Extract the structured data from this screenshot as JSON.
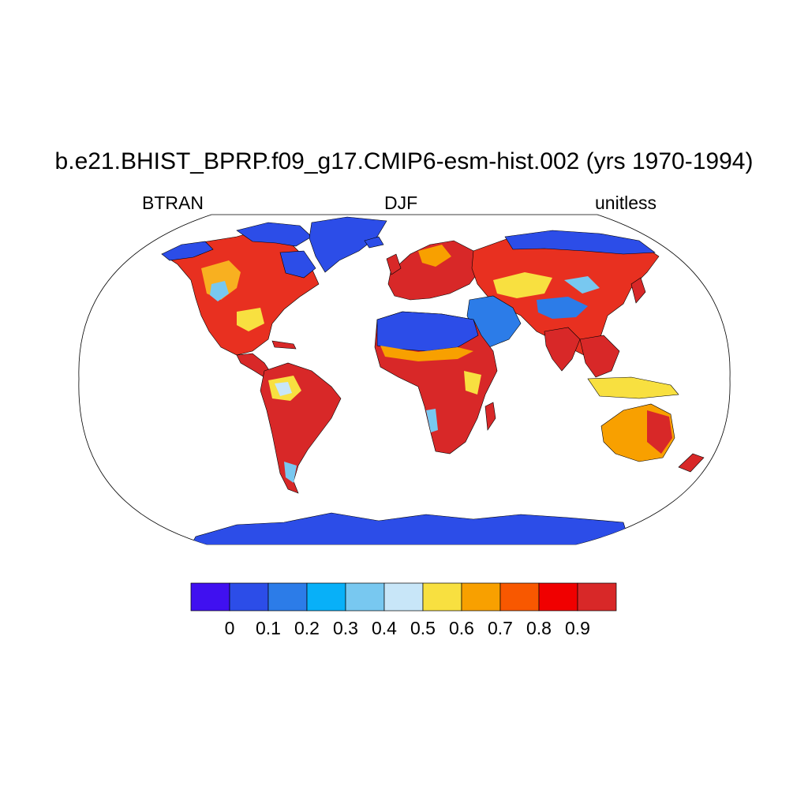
{
  "title": "b.e21.BHIST_BPRP.f09_g17.CMIP6-esm-hist.002 (yrs 1970-1994)",
  "subtitles": {
    "left": "BTRAN",
    "center": "DJF",
    "right": "unitless"
  },
  "colorbar": {
    "colors": [
      "#4010f0",
      "#2c4de8",
      "#2c7ce8",
      "#08b0f8",
      "#78c8f0",
      "#c8e6f8",
      "#f8e040",
      "#f8a000",
      "#f85800",
      "#f00000",
      "#d82828"
    ],
    "labels": [
      "0",
      "0.1",
      "0.2",
      "0.3",
      "0.4",
      "0.5",
      "0.6",
      "0.7",
      "0.8",
      "0.9"
    ]
  },
  "palette": {
    "land_border": "#000000",
    "ice": "#2c4de8"
  }
}
